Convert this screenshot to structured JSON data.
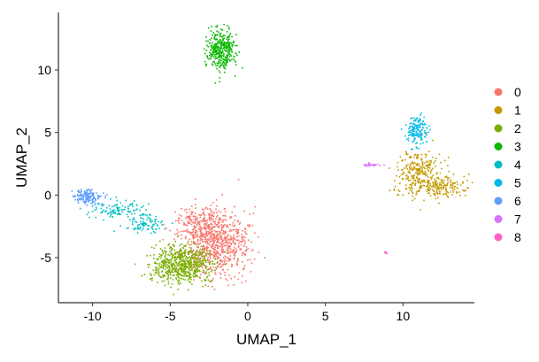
{
  "chart_data": {
    "type": "scatter",
    "title": "",
    "xlabel": "UMAP_1",
    "ylabel": "UMAP_2",
    "xlim": [
      -12.2,
      14.6
    ],
    "ylim": [
      -8.6,
      14.6
    ],
    "xticks": [
      -10,
      -5,
      0,
      5,
      10
    ],
    "yticks": [
      -5,
      0,
      5,
      10
    ],
    "xtick_labels": [
      "-10",
      "-5",
      "0",
      "5",
      "10"
    ],
    "ytick_labels": [
      "-5",
      "0",
      "5",
      "10"
    ],
    "grid": false,
    "legend_position": "right",
    "legend_title": "",
    "series": [
      {
        "name": "0",
        "color": "#F8766D",
        "n_points": 900,
        "clusters": [
          {
            "cx": -2.0,
            "cy": -3.8,
            "sx": 1.05,
            "sy": 1.35,
            "weight": 0.8
          },
          {
            "cx": -3.4,
            "cy": -2.4,
            "sx": 0.7,
            "sy": 0.7,
            "weight": 0.2
          }
        ]
      },
      {
        "name": "1",
        "color": "#C49A00",
        "n_points": 450,
        "clusters": [
          {
            "cx": 11.0,
            "cy": 1.9,
            "sx": 0.75,
            "sy": 0.9,
            "weight": 0.55
          },
          {
            "cx": 12.4,
            "cy": 0.6,
            "sx": 1.0,
            "sy": 0.45,
            "weight": 0.45
          }
        ]
      },
      {
        "name": "2",
        "color": "#7CAE00",
        "n_points": 620,
        "clusters": [
          {
            "cx": -4.3,
            "cy": -5.5,
            "sx": 1.0,
            "sy": 0.75,
            "weight": 1.0
          }
        ]
      },
      {
        "name": "3",
        "color": "#0CB702",
        "n_points": 360,
        "clusters": [
          {
            "cx": -1.7,
            "cy": 11.6,
            "sx": 0.45,
            "sy": 0.8,
            "weight": 1.0
          }
        ]
      },
      {
        "name": "4",
        "color": "#00BFC4",
        "n_points": 200,
        "clusters": [
          {
            "cx": -8.3,
            "cy": -1.2,
            "sx": 0.9,
            "sy": 0.35,
            "weight": 0.6
          },
          {
            "cx": -6.6,
            "cy": -2.3,
            "sx": 0.6,
            "sy": 0.35,
            "weight": 0.4
          }
        ]
      },
      {
        "name": "5",
        "color": "#00B8E7",
        "n_points": 160,
        "clusters": [
          {
            "cx": 10.9,
            "cy": 5.2,
            "sx": 0.35,
            "sy": 0.55,
            "weight": 1.0
          }
        ]
      },
      {
        "name": "6",
        "color": "#619CFF",
        "n_points": 150,
        "clusters": [
          {
            "cx": -10.2,
            "cy": -0.1,
            "sx": 0.45,
            "sy": 0.3,
            "weight": 1.0
          }
        ]
      },
      {
        "name": "7",
        "color": "#DB72FB",
        "n_points": 28,
        "clusters": [
          {
            "cx": 7.9,
            "cy": 2.4,
            "sx": 0.35,
            "sy": 0.07,
            "weight": 1.0
          }
        ]
      },
      {
        "name": "8",
        "color": "#FF61C3",
        "n_points": 6,
        "clusters": [
          {
            "cx": 8.9,
            "cy": -4.6,
            "sx": 0.05,
            "sy": 0.05,
            "weight": 1.0
          }
        ]
      }
    ]
  }
}
